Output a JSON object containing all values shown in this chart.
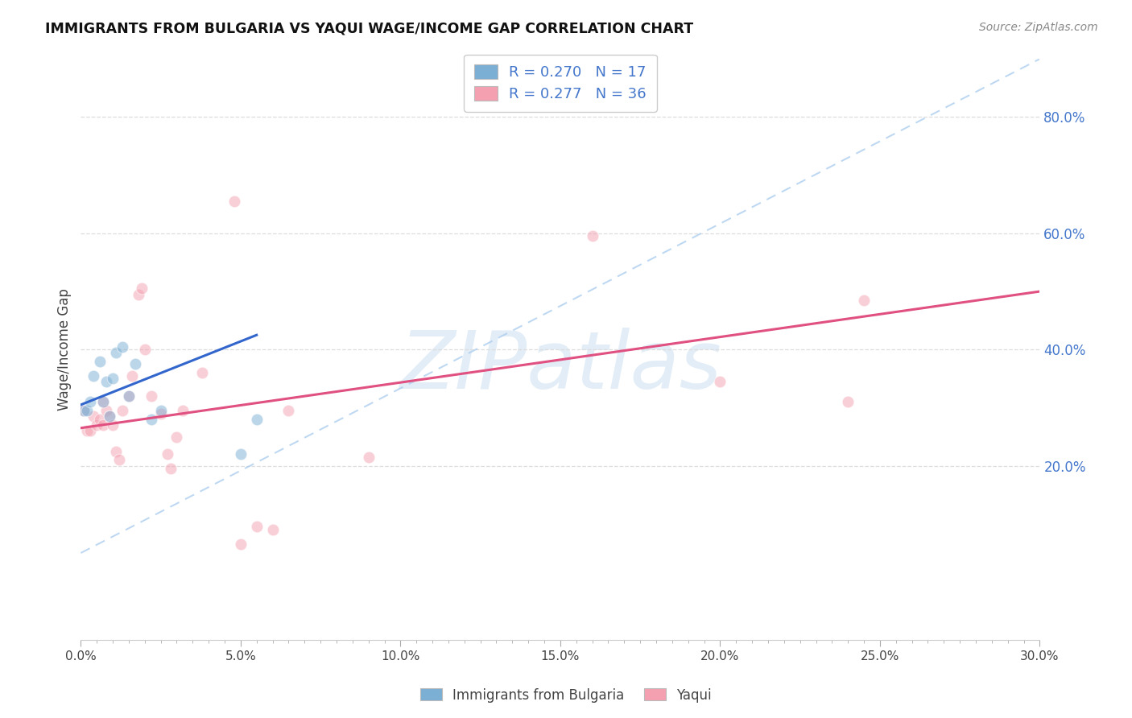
{
  "title": "IMMIGRANTS FROM BULGARIA VS YAQUI WAGE/INCOME GAP CORRELATION CHART",
  "source": "Source: ZipAtlas.com",
  "ylabel": "Wage/Income Gap",
  "xmin": 0.0,
  "xmax": 0.3,
  "ymin": -0.1,
  "ymax": 0.9,
  "ytick_right_labels": [
    "80.0%",
    "60.0%",
    "40.0%",
    "20.0%"
  ],
  "ytick_right_values": [
    0.8,
    0.6,
    0.4,
    0.2
  ],
  "xtick_labels": [
    "0.0%",
    "",
    "",
    "",
    "",
    "",
    "",
    "",
    "",
    "",
    "5.0%",
    "",
    "",
    "",
    "",
    "",
    "",
    "",
    "",
    "",
    "10.0%",
    "",
    "",
    "",
    "",
    "",
    "",
    "",
    "",
    "",
    "15.0%",
    "",
    "",
    "",
    "",
    "",
    "",
    "",
    "",
    "",
    "20.0%",
    "",
    "",
    "",
    "",
    "",
    "",
    "",
    "",
    "",
    "25.0%",
    "",
    "",
    "",
    "",
    "",
    "",
    "",
    "",
    "",
    "30.0%"
  ],
  "xtick_values": [
    0.0,
    0.005,
    0.01,
    0.015,
    0.02,
    0.025,
    0.03,
    0.035,
    0.04,
    0.045,
    0.05,
    0.055,
    0.06,
    0.065,
    0.07,
    0.075,
    0.08,
    0.085,
    0.09,
    0.095,
    0.1,
    0.105,
    0.11,
    0.115,
    0.12,
    0.125,
    0.13,
    0.135,
    0.14,
    0.145,
    0.15,
    0.155,
    0.16,
    0.165,
    0.17,
    0.175,
    0.18,
    0.185,
    0.19,
    0.195,
    0.2,
    0.205,
    0.21,
    0.215,
    0.22,
    0.225,
    0.23,
    0.235,
    0.24,
    0.245,
    0.25,
    0.255,
    0.26,
    0.265,
    0.27,
    0.275,
    0.28,
    0.285,
    0.29,
    0.295,
    0.3
  ],
  "xtick_major_labels": [
    "0.0%",
    "5.0%",
    "10.0%",
    "15.0%",
    "20.0%",
    "25.0%",
    "30.0%"
  ],
  "xtick_major_values": [
    0.0,
    0.05,
    0.1,
    0.15,
    0.2,
    0.25,
    0.3
  ],
  "blue_color": "#7bafd4",
  "pink_color": "#f4a0b0",
  "blue_line_color": "#3366cc",
  "pink_line_color": "#e05080",
  "legend_label_blue": "Immigrants from Bulgaria",
  "legend_label_pink": "Yaqui",
  "watermark": "ZIPatlas",
  "blue_x": [
    0.001,
    0.002,
    0.003,
    0.004,
    0.006,
    0.007,
    0.008,
    0.009,
    0.01,
    0.011,
    0.013,
    0.015,
    0.017,
    0.022,
    0.025,
    0.05,
    0.055
  ],
  "blue_y": [
    0.295,
    0.295,
    0.31,
    0.355,
    0.38,
    0.31,
    0.345,
    0.285,
    0.35,
    0.395,
    0.405,
    0.32,
    0.375,
    0.28,
    0.295,
    0.22,
    0.28
  ],
  "blue_trend_x": [
    0.0,
    0.055
  ],
  "blue_trend_y": [
    0.305,
    0.425
  ],
  "pink_x": [
    0.001,
    0.002,
    0.003,
    0.004,
    0.005,
    0.006,
    0.007,
    0.007,
    0.008,
    0.009,
    0.01,
    0.011,
    0.012,
    0.013,
    0.015,
    0.016,
    0.018,
    0.019,
    0.02,
    0.022,
    0.025,
    0.027,
    0.028,
    0.03,
    0.032,
    0.038,
    0.048,
    0.05,
    0.055,
    0.06,
    0.065,
    0.09,
    0.16,
    0.2,
    0.24,
    0.245
  ],
  "pink_y": [
    0.295,
    0.26,
    0.26,
    0.285,
    0.27,
    0.28,
    0.27,
    0.31,
    0.295,
    0.285,
    0.27,
    0.225,
    0.21,
    0.295,
    0.32,
    0.355,
    0.495,
    0.505,
    0.4,
    0.32,
    0.29,
    0.22,
    0.195,
    0.25,
    0.295,
    0.36,
    0.655,
    0.065,
    0.095,
    0.09,
    0.295,
    0.215,
    0.595,
    0.345,
    0.31,
    0.485
  ],
  "pink_trend_x": [
    0.0,
    0.3
  ],
  "pink_trend_y": [
    0.265,
    0.5
  ],
  "dashed_trend_x": [
    0.0,
    0.3
  ],
  "dashed_trend_y": [
    0.05,
    0.9
  ],
  "background_color": "#ffffff",
  "grid_color": "#dddddd",
  "axis_label_color": "#4477cc",
  "dot_size": 110,
  "dot_alpha": 0.5
}
